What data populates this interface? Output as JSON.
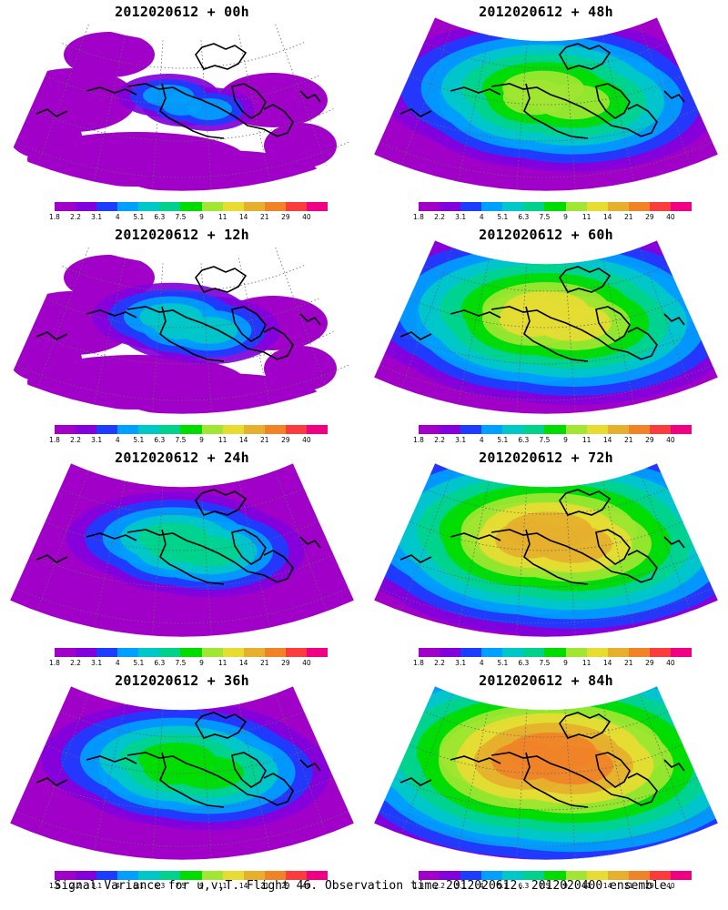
{
  "panels": [
    {
      "title": "2012020612 + 00h",
      "level": 0
    },
    {
      "title": "2012020612 + 48h",
      "level": 4
    },
    {
      "title": "2012020612 + 12h",
      "level": 1
    },
    {
      "title": "2012020612 + 60h",
      "level": 5
    },
    {
      "title": "2012020612 + 24h",
      "level": 2
    },
    {
      "title": "2012020612 + 72h",
      "level": 6
    },
    {
      "title": "2012020612 + 36h",
      "level": 3
    },
    {
      "title": "2012020612 + 84h",
      "level": 7
    }
  ],
  "colorbar": {
    "colors": [
      "#a000c8",
      "#8200dc",
      "#1e3cff",
      "#00a0ff",
      "#00c8c8",
      "#00d28c",
      "#00dc00",
      "#a0e632",
      "#e6dc32",
      "#e6af2d",
      "#f08228",
      "#fa3c3c",
      "#f00082"
    ],
    "labels": [
      "1.8",
      "2.2",
      "3.1",
      "4",
      "5.1",
      "6.3",
      "7.5",
      "9",
      "11",
      "14",
      "21",
      "29",
      "40"
    ]
  },
  "caption": "Signal Variance for u,v,T. Flight 46. Observation time 2012020612. 2012020400 ensemble."
}
